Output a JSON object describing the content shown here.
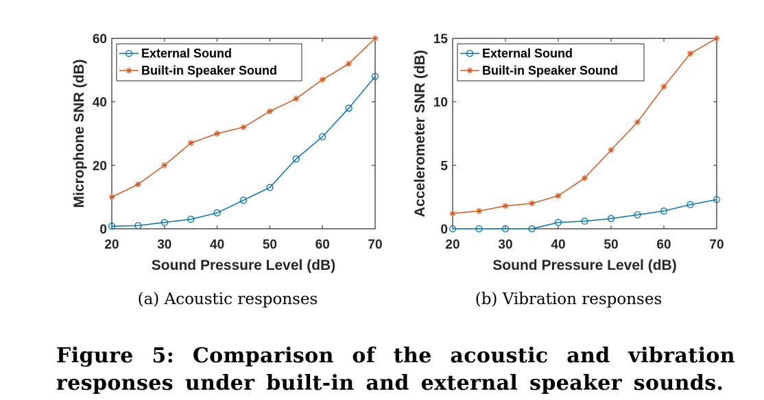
{
  "chart_data": [
    {
      "type": "line",
      "xlabel": "Sound Pressure Level (dB)",
      "ylabel": "Microphone SNR (dB)",
      "xlim": [
        20,
        70
      ],
      "ylim": [
        0,
        60
      ],
      "xticks": [
        "20",
        "30",
        "40",
        "50",
        "60",
        "70"
      ],
      "yticks": [
        "0",
        "20",
        "40",
        "60"
      ],
      "grid": false,
      "legend_position": "top-left",
      "x": [
        20,
        25,
        30,
        35,
        40,
        45,
        50,
        55,
        60,
        65,
        70
      ],
      "series": [
        {
          "name": "External Sound",
          "color": "#0072BD",
          "marker": "circle",
          "values": [
            0.8,
            1,
            2,
            3,
            5,
            9,
            13,
            22,
            29,
            38,
            48
          ]
        },
        {
          "name": "Built-in Speaker Sound",
          "color": "#D95319",
          "marker": "asterisk",
          "values": [
            10,
            14,
            20,
            27,
            30,
            32,
            37,
            41,
            47,
            52,
            60
          ]
        }
      ],
      "subcaption": "(a) Acoustic responses"
    },
    {
      "type": "line",
      "xlabel": "Sound Pressure Level (dB)",
      "ylabel": "Accelerometer SNR (dB)",
      "xlim": [
        20,
        70
      ],
      "ylim": [
        0,
        15
      ],
      "xticks": [
        "20",
        "30",
        "40",
        "50",
        "60",
        "70"
      ],
      "yticks": [
        "0",
        "5",
        "10",
        "15"
      ],
      "grid": false,
      "legend_position": "top-left",
      "x": [
        20,
        25,
        30,
        35,
        40,
        45,
        50,
        55,
        60,
        65,
        70
      ],
      "series": [
        {
          "name": "External Sound",
          "color": "#0072BD",
          "marker": "circle",
          "values": [
            0,
            0,
            0,
            0,
            0.5,
            0.6,
            0.8,
            1.1,
            1.4,
            1.9,
            2.3
          ]
        },
        {
          "name": "Built-in Speaker Sound",
          "color": "#D95319",
          "marker": "asterisk",
          "values": [
            1.2,
            1.4,
            1.8,
            2.0,
            2.6,
            4.0,
            6.2,
            8.4,
            11.2,
            13.8,
            15
          ]
        }
      ],
      "subcaption": "(b) Vibration responses"
    }
  ],
  "caption": "Figure 5: Comparison of the acoustic and vibration responses under built-in and external speaker sounds."
}
